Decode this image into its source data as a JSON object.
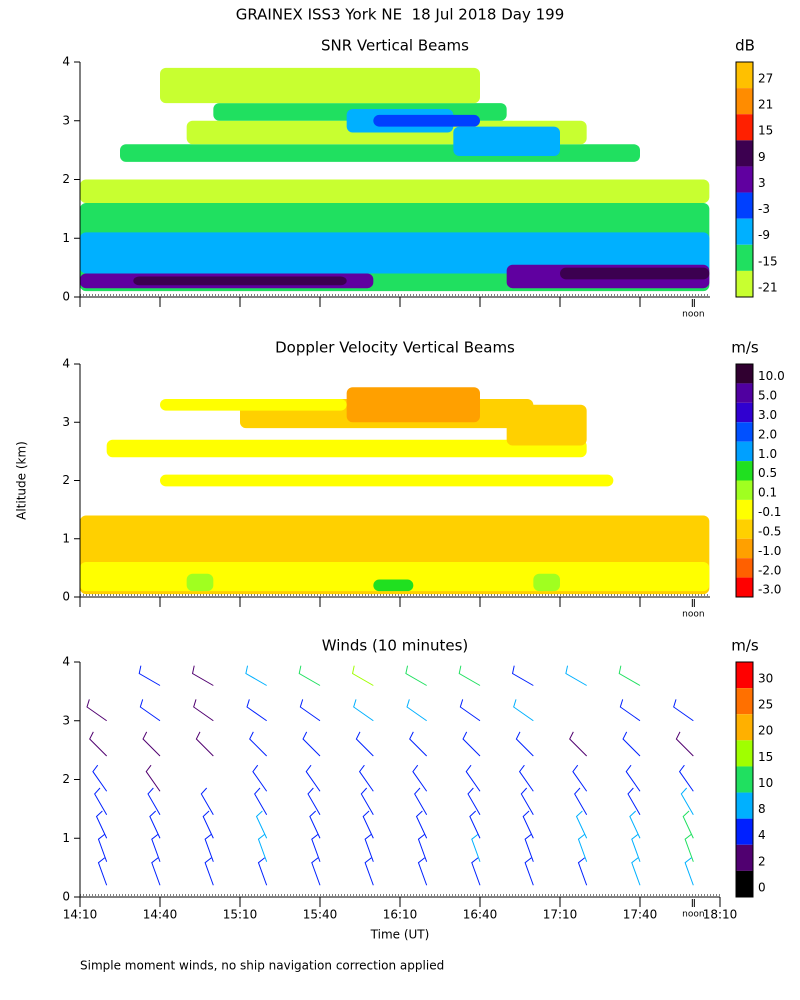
{
  "header": {
    "title": "GRAINEX ISS3 York NE  18 Jul 2018 Day 199"
  },
  "footer": {
    "note": "Simple moment winds, no ship navigation correction applied"
  },
  "chart_data": [
    {
      "type": "heatmap",
      "title": "SNR Vertical Beams",
      "xlim": [
        850,
        1090
      ],
      "ylim": [
        0,
        4
      ],
      "yticks": [
        0,
        1,
        2,
        3,
        4
      ],
      "annotation": {
        "text": "noon",
        "x": 1080
      },
      "colorbar": {
        "unit": "dB",
        "ticks": [
          27,
          21,
          15,
          9,
          3,
          -3,
          -9,
          -15,
          -21
        ],
        "colors": [
          "#ffc000",
          "#ff8c00",
          "#ff2000",
          "#3c0050",
          "#6000a0",
          "#0040ff",
          "#00b0ff",
          "#20e060",
          "#c8ff30"
        ]
      },
      "regions": [
        [
          850,
          1086,
          0.1,
          1.6,
          -15
        ],
        [
          850,
          1086,
          0.4,
          1.1,
          -9
        ],
        [
          850,
          960,
          0.15,
          0.4,
          3
        ],
        [
          870,
          950,
          0.2,
          0.35,
          9
        ],
        [
          1010,
          1086,
          0.15,
          0.55,
          3
        ],
        [
          1030,
          1086,
          0.3,
          0.5,
          9
        ],
        [
          850,
          1086,
          1.6,
          2.0,
          -21
        ],
        [
          865,
          1060,
          2.3,
          2.6,
          -15
        ],
        [
          890,
          1040,
          2.6,
          3.0,
          -21
        ],
        [
          900,
          1010,
          3.0,
          3.3,
          -15
        ],
        [
          950,
          990,
          2.8,
          3.2,
          -9
        ],
        [
          960,
          1000,
          2.9,
          3.1,
          -3
        ],
        [
          990,
          1030,
          2.4,
          2.9,
          -9
        ],
        [
          880,
          1000,
          3.3,
          3.9,
          -21
        ]
      ]
    },
    {
      "type": "heatmap",
      "title": "Doppler Velocity Vertical Beams",
      "ylabel": "Altitude (km)",
      "xlim": [
        850,
        1090
      ],
      "ylim": [
        0,
        4
      ],
      "yticks": [
        0,
        1,
        2,
        3,
        4
      ],
      "annotation": {
        "text": "noon",
        "x": 1080
      },
      "colorbar": {
        "unit": "m/s",
        "ticks": [
          {
            "value": 10,
            "label": "10.0"
          },
          {
            "value": 5,
            "label": "5.0"
          },
          {
            "value": 3,
            "label": "3.0"
          },
          {
            "value": 2,
            "label": "2.0"
          },
          {
            "value": 1,
            "label": "1.0"
          },
          0.5,
          0.1,
          -0.1,
          -0.5,
          {
            "value": -1,
            "label": "-1.0"
          },
          {
            "value": -2,
            "label": "-2.0"
          },
          {
            "value": -3,
            "label": "-3.0"
          }
        ],
        "colors": [
          "#300030",
          "#5000a0",
          "#3000d0",
          "#0050ff",
          "#00a0ff",
          "#20e020",
          "#a0ff20",
          "#ffff00",
          "#ffd000",
          "#ffa000",
          "#ff6000",
          "#ff0000"
        ]
      },
      "regions": [
        [
          850,
          1086,
          0.05,
          1.4,
          -0.5
        ],
        [
          850,
          1086,
          0.1,
          0.6,
          -0.1
        ],
        [
          890,
          900,
          0.1,
          0.4,
          0.1
        ],
        [
          960,
          975,
          0.1,
          0.3,
          0.5
        ],
        [
          1020,
          1030,
          0.1,
          0.4,
          0.1
        ],
        [
          880,
          1050,
          1.9,
          2.1,
          -0.1
        ],
        [
          860,
          1040,
          2.4,
          2.7,
          -0.1
        ],
        [
          910,
          1020,
          2.9,
          3.4,
          -0.5
        ],
        [
          950,
          1000,
          3.0,
          3.6,
          -1
        ],
        [
          1010,
          1040,
          2.6,
          3.3,
          -0.5
        ],
        [
          880,
          950,
          3.2,
          3.4,
          -0.1
        ]
      ]
    },
    {
      "type": "barbs",
      "title": "Winds (10 minutes)",
      "xlabel": "Time (UT)",
      "xlim": [
        850,
        1090
      ],
      "ylim": [
        0,
        4
      ],
      "yticks": [
        0,
        1,
        2,
        3,
        4
      ],
      "xticks": [
        {
          "value": 850,
          "label": "14:10"
        },
        {
          "value": 880,
          "label": "14:40"
        },
        {
          "value": 910,
          "label": "15:10"
        },
        {
          "value": 940,
          "label": "15:40"
        },
        {
          "value": 970,
          "label": "16:10"
        },
        {
          "value": 1000,
          "label": "16:40"
        },
        {
          "value": 1030,
          "label": "17:10"
        },
        {
          "value": 1060,
          "label": "17:40"
        },
        {
          "value": 1090,
          "label": "18:10"
        }
      ],
      "annotation": {
        "text": "noon",
        "x": 1080
      },
      "colorbar": {
        "unit": "m/s",
        "ticks": [
          30,
          25,
          20,
          15,
          10,
          8,
          4,
          2,
          0
        ],
        "colors": [
          "#ff0000",
          "#ff7000",
          "#ffb000",
          "#a0ff00",
          "#20e060",
          "#00b0ff",
          "#0020ff",
          "#500070",
          "#000000"
        ]
      },
      "winds": {
        "times": [
          860,
          880,
          900,
          920,
          940,
          960,
          980,
          1000,
          1020,
          1040,
          1060,
          1080
        ],
        "altitudes": [
          0.2,
          0.6,
          1.0,
          1.4,
          1.8,
          2.4,
          3.0,
          3.6
        ],
        "direction": [
          340,
          340,
          335,
          330,
          325,
          315,
          305,
          300
        ],
        "speed": [
          [
            6,
            5,
            6,
            5,
            6,
            6,
            7,
            6,
            7,
            6,
            8,
            9
          ],
          [
            7,
            6,
            7,
            8,
            6,
            7,
            7,
            8,
            7,
            8,
            9,
            10
          ],
          [
            6,
            6,
            5,
            9,
            6,
            7,
            6,
            7,
            6,
            8,
            9,
            11
          ],
          [
            5,
            5,
            4,
            6,
            5,
            6,
            6,
            6,
            5,
            6,
            7,
            8
          ],
          [
            4,
            3,
            null,
            4,
            5,
            5,
            6,
            5,
            4,
            4,
            6,
            5
          ],
          [
            3,
            2,
            3,
            4,
            5,
            6,
            7,
            5,
            4,
            3,
            4,
            3
          ],
          [
            3,
            4,
            3,
            5,
            7,
            8,
            9,
            6,
            8,
            null,
            6,
            4
          ],
          [
            null,
            4,
            3,
            8,
            14,
            16,
            13,
            11,
            7,
            9,
            12,
            null
          ]
        ]
      }
    }
  ]
}
